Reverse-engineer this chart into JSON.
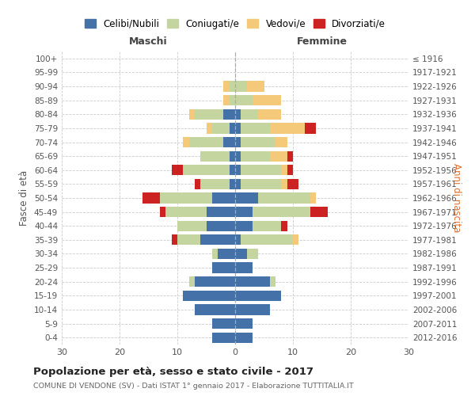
{
  "age_groups": [
    "0-4",
    "5-9",
    "10-14",
    "15-19",
    "20-24",
    "25-29",
    "30-34",
    "35-39",
    "40-44",
    "45-49",
    "50-54",
    "55-59",
    "60-64",
    "65-69",
    "70-74",
    "75-79",
    "80-84",
    "85-89",
    "90-94",
    "95-99",
    "100+"
  ],
  "birth_years": [
    "2012-2016",
    "2007-2011",
    "2002-2006",
    "1997-2001",
    "1992-1996",
    "1987-1991",
    "1982-1986",
    "1977-1981",
    "1972-1976",
    "1967-1971",
    "1962-1966",
    "1957-1961",
    "1952-1956",
    "1947-1951",
    "1942-1946",
    "1937-1941",
    "1932-1936",
    "1927-1931",
    "1922-1926",
    "1917-1921",
    "≤ 1916"
  ],
  "males_celibi": [
    4,
    4,
    7,
    9,
    7,
    4,
    3,
    6,
    5,
    5,
    4,
    1,
    1,
    1,
    2,
    1,
    2,
    0,
    0,
    0,
    0
  ],
  "males_coniugati": [
    0,
    0,
    0,
    0,
    1,
    0,
    1,
    4,
    5,
    7,
    9,
    5,
    8,
    5,
    6,
    3,
    5,
    1,
    1,
    0,
    0
  ],
  "males_vedovi": [
    0,
    0,
    0,
    0,
    0,
    0,
    0,
    0,
    0,
    0,
    0,
    0,
    0,
    0,
    1,
    1,
    1,
    1,
    1,
    0,
    0
  ],
  "males_divorziati": [
    0,
    0,
    0,
    0,
    0,
    0,
    0,
    1,
    0,
    1,
    3,
    1,
    2,
    0,
    0,
    0,
    0,
    0,
    0,
    0,
    0
  ],
  "females_nubili": [
    3,
    3,
    6,
    8,
    6,
    3,
    2,
    1,
    3,
    3,
    4,
    1,
    1,
    1,
    1,
    1,
    1,
    0,
    0,
    0,
    0
  ],
  "females_coniugate": [
    0,
    0,
    0,
    0,
    1,
    0,
    2,
    9,
    5,
    10,
    9,
    7,
    7,
    5,
    6,
    5,
    3,
    3,
    2,
    0,
    0
  ],
  "females_vedove": [
    0,
    0,
    0,
    0,
    0,
    0,
    0,
    1,
    0,
    0,
    1,
    1,
    1,
    3,
    2,
    6,
    4,
    5,
    3,
    0,
    0
  ],
  "females_divorziate": [
    0,
    0,
    0,
    0,
    0,
    0,
    0,
    0,
    1,
    3,
    0,
    2,
    1,
    1,
    0,
    2,
    0,
    0,
    0,
    0,
    0
  ],
  "color_celibi": "#4472a8",
  "color_coniugati": "#c5d5a0",
  "color_vedovi": "#f5c97a",
  "color_divorziati": "#cc2222",
  "title": "Popolazione per età, sesso e stato civile - 2017",
  "subtitle": "COMUNE DI VENDONE (SV) - Dati ISTAT 1° gennaio 2017 - Elaborazione TUTTITALIA.IT",
  "label_maschi": "Maschi",
  "label_femmine": "Femmine",
  "ylabel_left": "Fasce di età",
  "ylabel_right": "Anni di nascita",
  "legend_labels": [
    "Celibi/Nubili",
    "Coniugati/e",
    "Vedovi/e",
    "Divorziati/e"
  ],
  "xlim": [
    -30,
    30
  ],
  "bg_color": "#ffffff",
  "grid_color": "#cccccc"
}
